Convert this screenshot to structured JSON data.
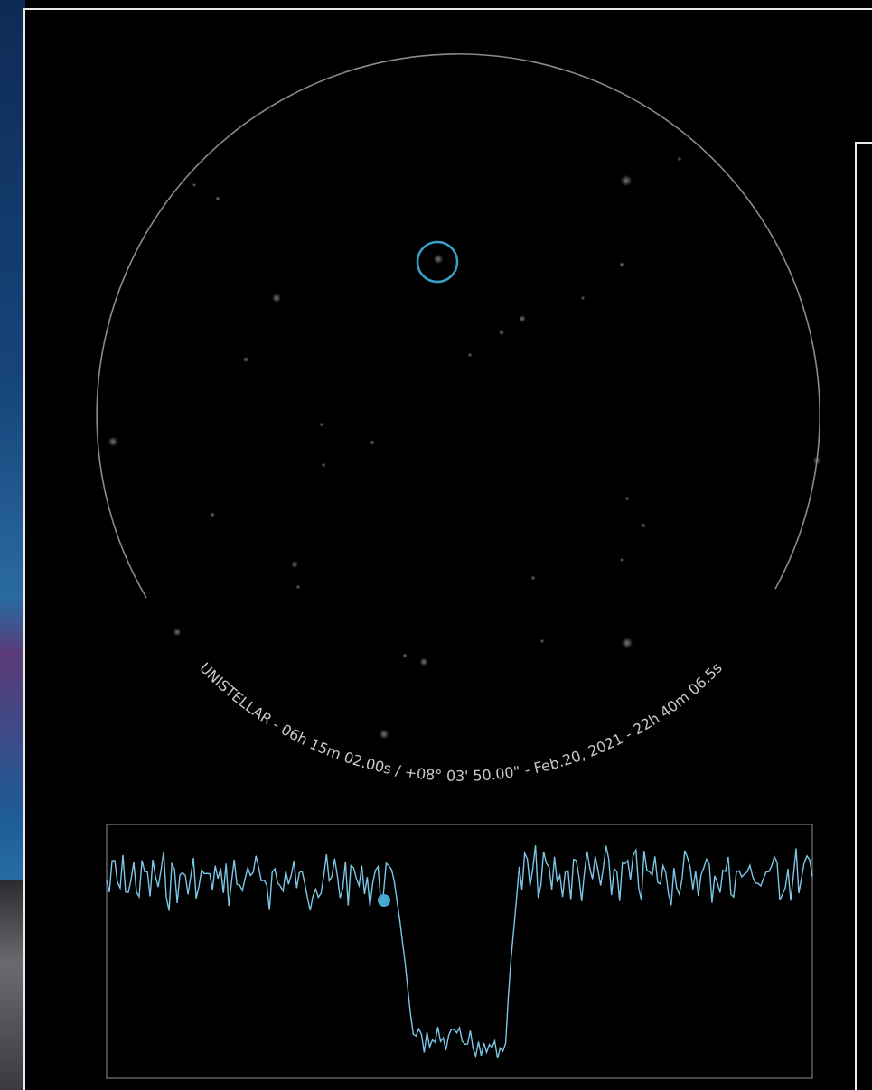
{
  "eyepiece": {
    "caption": "UNISTELLAR - 06h 15m 02.00s / +08° 03' 50.00\" - Feb.20, 2021 - 22h 40m 06.5s",
    "ring_color": "#8a8a8a",
    "target_marker_color": "#3aa0c8"
  },
  "light_curve": {
    "line_color": "#7cc6e6",
    "marker_color": "#4aa8d0",
    "frame_color": "#777777"
  }
}
